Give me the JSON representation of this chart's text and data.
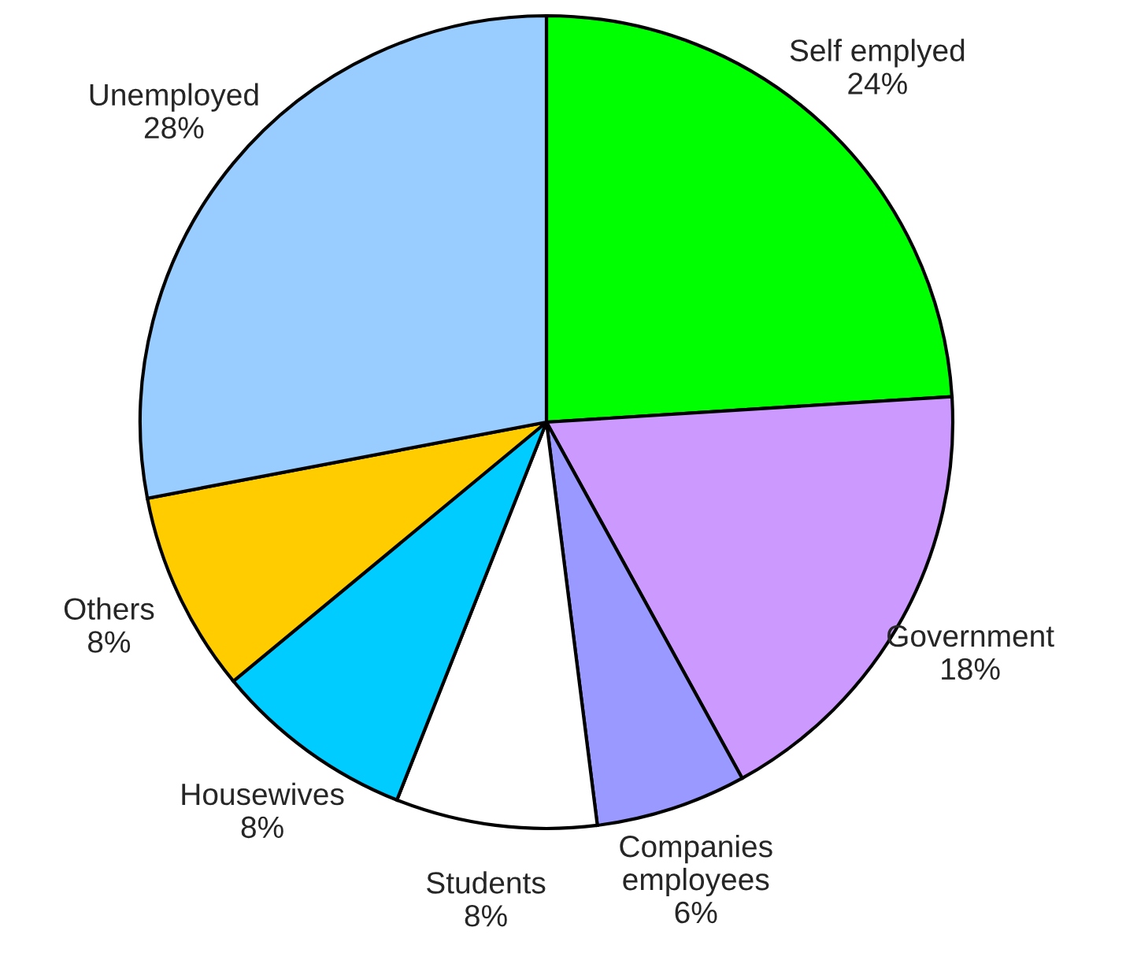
{
  "chart_data": {
    "type": "pie",
    "categories": [
      "Self emplyed",
      "Government",
      "Companies\nemployees",
      "Students",
      "Housewives",
      "Others",
      "Unemployed"
    ],
    "values": [
      24,
      18,
      6,
      8,
      8,
      8,
      28
    ],
    "value_labels": [
      "24%",
      "18%",
      "6%",
      "8%",
      "8%",
      "8%",
      "28%"
    ],
    "colors": [
      "#00ff00",
      "#cc99ff",
      "#9999ff",
      "#ffffff",
      "#00ccff",
      "#ffcc00",
      "#99ccff"
    ],
    "legend": false
  }
}
